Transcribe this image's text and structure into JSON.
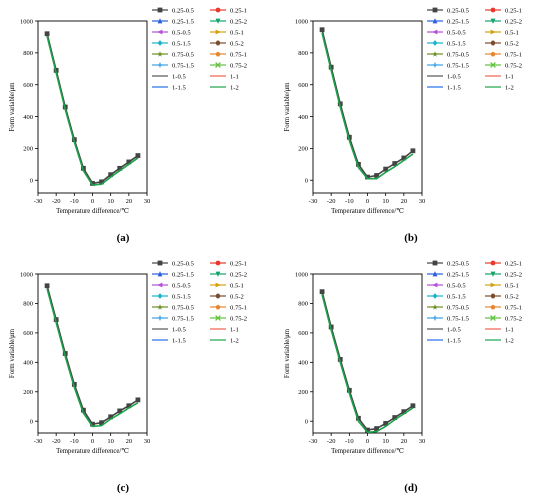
{
  "figure": {
    "panel_labels": [
      "(a)",
      "(b)",
      "(c)",
      "(d)"
    ]
  },
  "legend": {
    "entries": [
      {
        "label": "0.25-0.5",
        "color": "#444444",
        "marker": "square"
      },
      {
        "label": "0.25-1",
        "color": "#e8392c",
        "marker": "circle"
      },
      {
        "label": "0.25-1.5",
        "color": "#2a5fe0",
        "marker": "triangle-up"
      },
      {
        "label": "0.25-2",
        "color": "#13a36b",
        "marker": "triangle-down"
      },
      {
        "label": "0.5-0.5",
        "color": "#b44fd6",
        "marker": "triangle-left"
      },
      {
        "label": "0.5-1",
        "color": "#d4a20d",
        "marker": "triangle-right"
      },
      {
        "label": "0.5-1.5",
        "color": "#17b3c9",
        "marker": "diamond"
      },
      {
        "label": "0.5-2",
        "color": "#7a4b2a",
        "marker": "hexagon"
      },
      {
        "label": "0.75-0.5",
        "color": "#6b8e23",
        "marker": "star"
      },
      {
        "label": "0.75-1",
        "color": "#e8842c",
        "marker": "pentagon"
      },
      {
        "label": "0.75-1.5",
        "color": "#3aa0e8",
        "marker": "cross"
      },
      {
        "label": "0.75-2",
        "color": "#5ec23c",
        "marker": "x"
      },
      {
        "label": "1-0.5",
        "color": "#555555",
        "marker": "none"
      },
      {
        "label": "1-1",
        "color": "#f06050",
        "marker": "none"
      },
      {
        "label": "1-1.5",
        "color": "#1f6fe8",
        "marker": "none"
      },
      {
        "label": "1-2",
        "color": "#1aa34a",
        "marker": "none"
      }
    ]
  },
  "chart_data": [
    {
      "type": "line",
      "panel": "(a)",
      "xlabel": "Temperature difference/℃",
      "ylabel": "Form variable/μm",
      "xlim": [
        -30,
        30
      ],
      "ylim": [
        -80,
        1000
      ],
      "xticks": [
        -30,
        -20,
        -10,
        0,
        10,
        20,
        30
      ],
      "yticks": [
        0,
        200,
        400,
        600,
        800,
        1000
      ],
      "x": [
        -25,
        -20,
        -15,
        -10,
        -5,
        0,
        5,
        10,
        15,
        20,
        25
      ],
      "series": [
        {
          "name": "0.25-0.5",
          "values": [
            920,
            690,
            460,
            255,
            75,
            -20,
            -10,
            35,
            75,
            115,
            155
          ]
        },
        {
          "name": "1-2",
          "values": [
            905,
            675,
            445,
            240,
            60,
            -30,
            -25,
            20,
            60,
            100,
            140
          ]
        }
      ]
    },
    {
      "type": "line",
      "panel": "(b)",
      "xlabel": "Temperature difference/℃",
      "ylabel": "Form variable/μm",
      "xlim": [
        -30,
        30
      ],
      "ylim": [
        -80,
        1000
      ],
      "xticks": [
        -30,
        -20,
        -10,
        0,
        10,
        20,
        30
      ],
      "yticks": [
        0,
        200,
        400,
        600,
        800,
        1000
      ],
      "x": [
        -25,
        -20,
        -15,
        -10,
        -5,
        0,
        5,
        10,
        15,
        20,
        25
      ],
      "series": [
        {
          "name": "0.25-0.5",
          "values": [
            945,
            710,
            480,
            270,
            100,
            20,
            30,
            70,
            105,
            140,
            185
          ]
        },
        {
          "name": "1-2",
          "values": [
            925,
            690,
            460,
            250,
            80,
            10,
            10,
            50,
            85,
            125,
            165
          ]
        }
      ]
    },
    {
      "type": "line",
      "panel": "(c)",
      "xlabel": "Temperature difference/℃",
      "ylabel": "Form variable/μm",
      "xlim": [
        -30,
        30
      ],
      "ylim": [
        -80,
        1000
      ],
      "xticks": [
        -30,
        -20,
        -10,
        0,
        10,
        20,
        30
      ],
      "yticks": [
        0,
        200,
        400,
        600,
        800,
        1000
      ],
      "x": [
        -25,
        -20,
        -15,
        -10,
        -5,
        0,
        5,
        10,
        15,
        20,
        25
      ],
      "series": [
        {
          "name": "0.25-0.5",
          "values": [
            920,
            690,
            460,
            250,
            75,
            -20,
            -10,
            30,
            70,
            105,
            145
          ]
        },
        {
          "name": "1-2",
          "values": [
            900,
            670,
            440,
            230,
            55,
            -35,
            -30,
            15,
            50,
            90,
            125
          ]
        }
      ]
    },
    {
      "type": "line",
      "panel": "(d)",
      "xlabel": "Temperature difference/℃",
      "ylabel": "Form variable/μm",
      "xlim": [
        -30,
        30
      ],
      "ylim": [
        -80,
        1000
      ],
      "xticks": [
        -30,
        -20,
        -10,
        0,
        10,
        20,
        30
      ],
      "yticks": [
        0,
        200,
        400,
        600,
        800,
        1000
      ],
      "x": [
        -25,
        -20,
        -15,
        -10,
        -5,
        0,
        5,
        10,
        15,
        20,
        25
      ],
      "series": [
        {
          "name": "0.25-0.5",
          "values": [
            880,
            640,
            420,
            210,
            20,
            -60,
            -50,
            -15,
            25,
            65,
            105
          ]
        },
        {
          "name": "1-2",
          "values": [
            860,
            620,
            400,
            190,
            0,
            -75,
            -70,
            -35,
            10,
            50,
            90
          ]
        }
      ]
    }
  ]
}
